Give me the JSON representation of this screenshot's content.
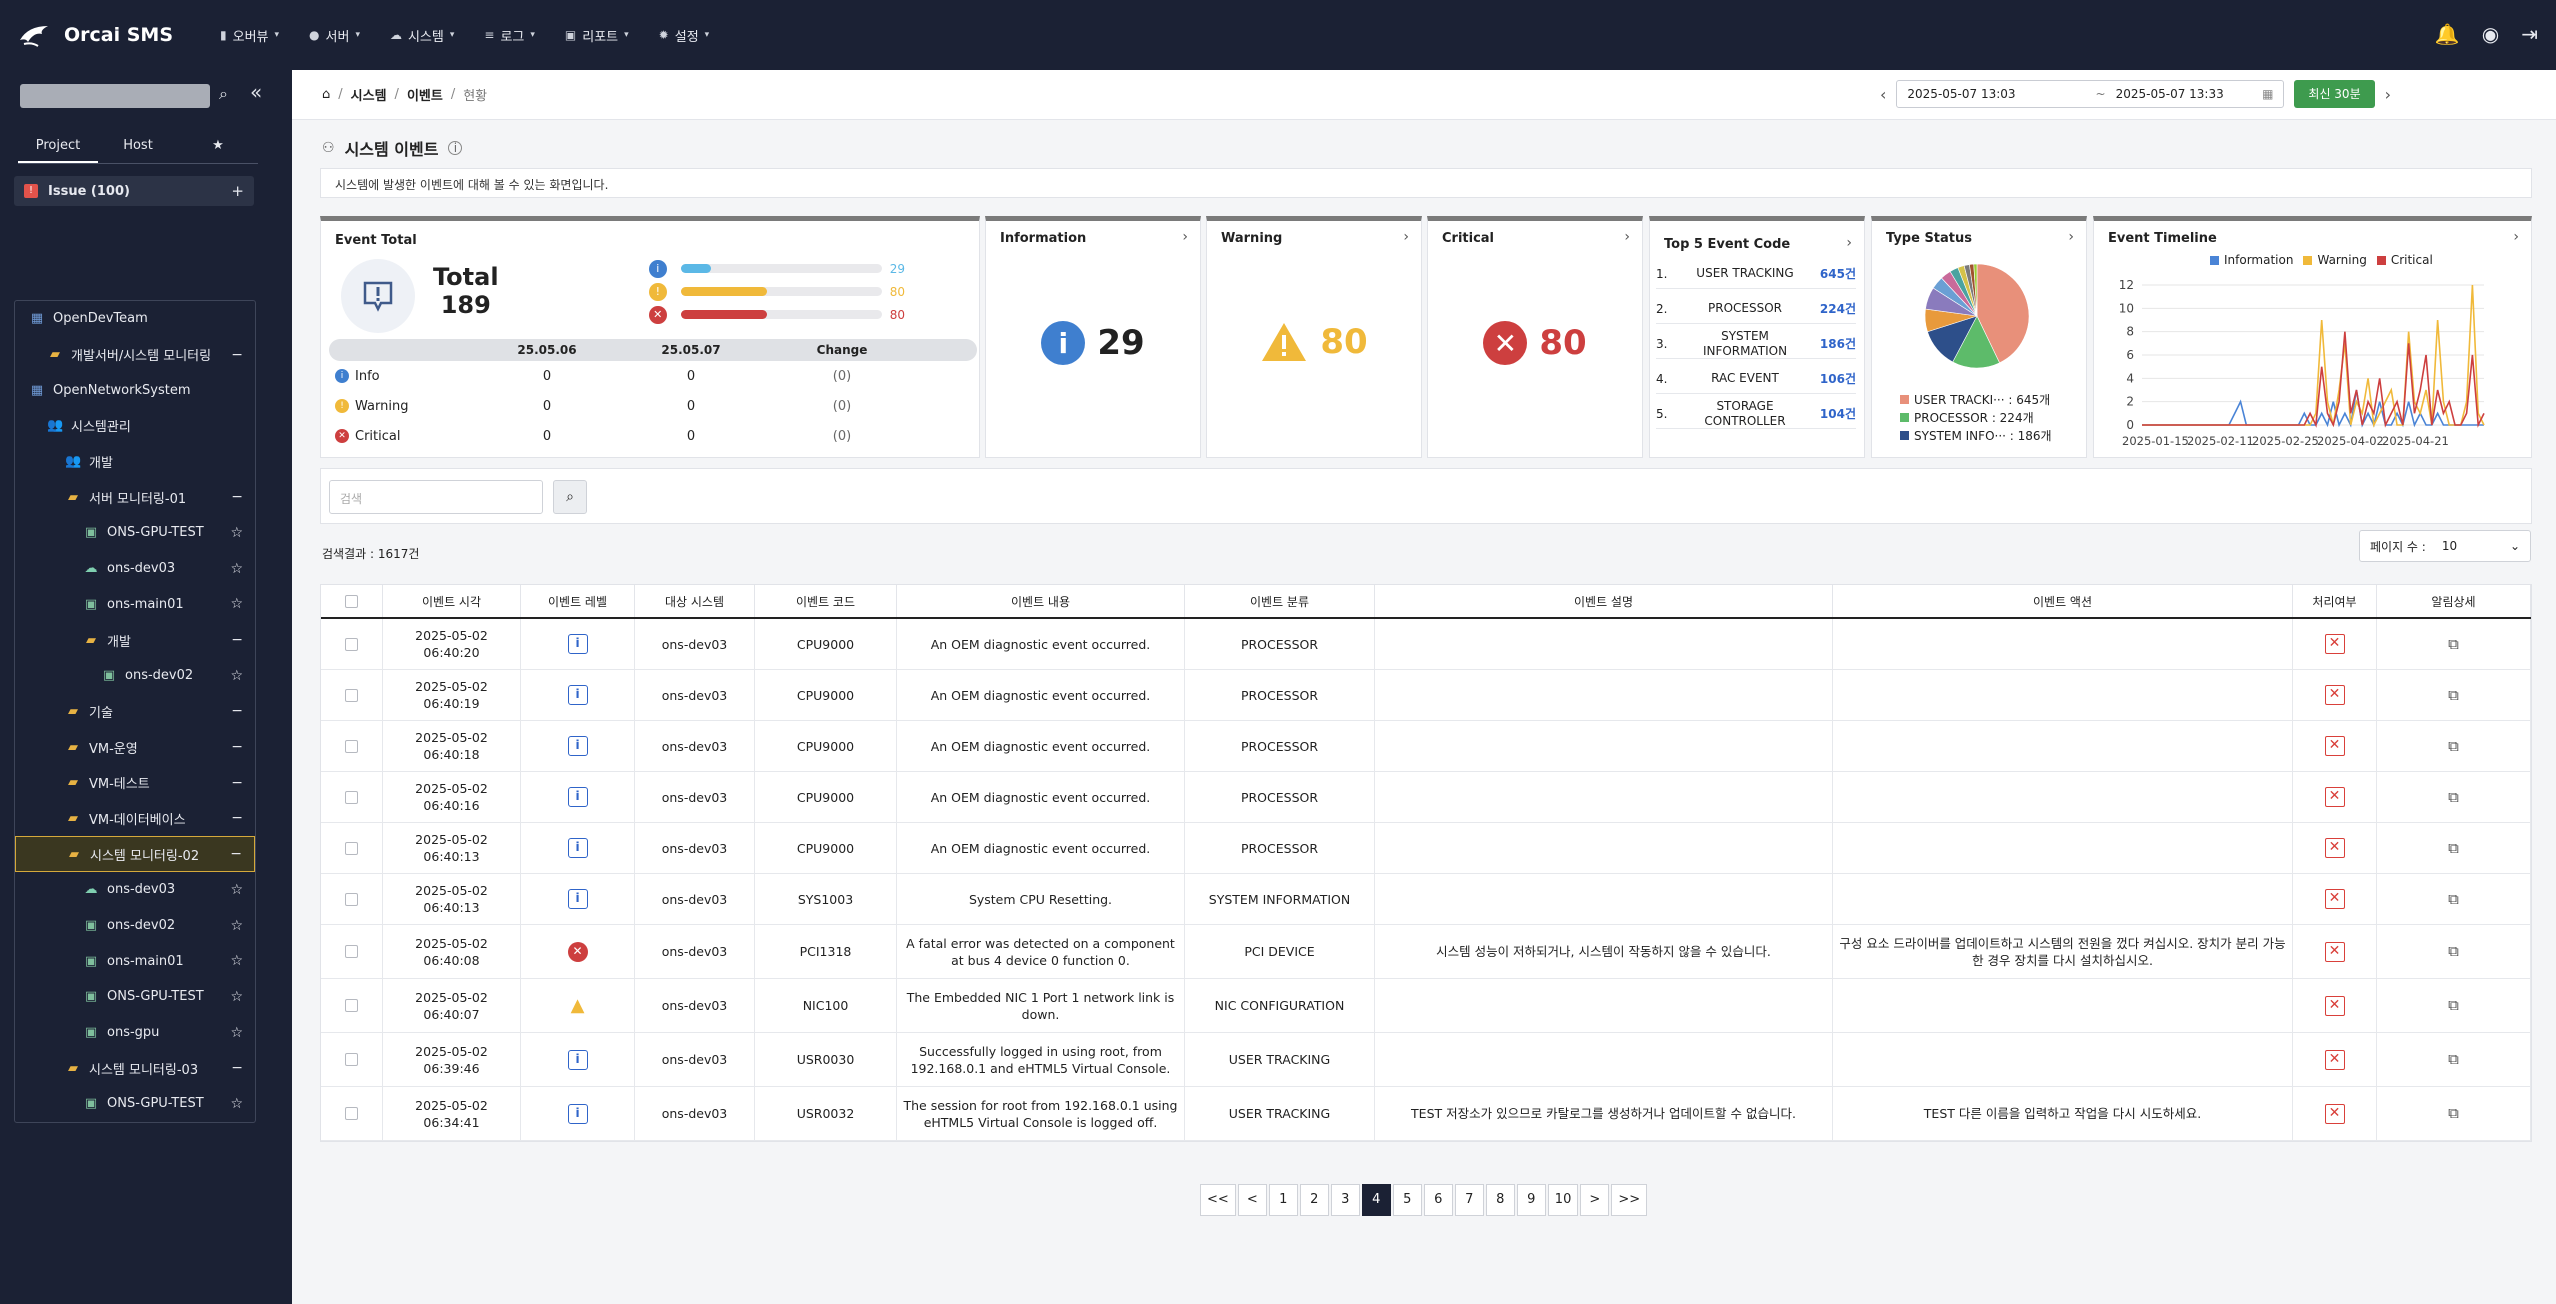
{
  "app": {
    "name": "Orcai SMS"
  },
  "menu": [
    {
      "icon": "chart-icon",
      "label": "오버뷰"
    },
    {
      "icon": "server-icon",
      "label": "서버"
    },
    {
      "icon": "cloud-icon",
      "label": "시스템"
    },
    {
      "icon": "list-icon",
      "label": "로그"
    },
    {
      "icon": "report-icon",
      "label": "리포트"
    },
    {
      "icon": "gear-icon",
      "label": "설정"
    }
  ],
  "sidebar": {
    "tabs": [
      "Project",
      "Host"
    ],
    "issue_label": "Issue (100)",
    "tree": [
      {
        "label": "OpenDevTeam",
        "type": "team",
        "indent": 0,
        "action": ""
      },
      {
        "label": "개발서버/시스템 모니터링",
        "type": "folder",
        "indent": 1,
        "action": "−"
      },
      {
        "label": "OpenNetworkSystem",
        "type": "team",
        "indent": 0,
        "action": ""
      },
      {
        "label": "시스템관리",
        "type": "group",
        "indent": 1,
        "action": ""
      },
      {
        "label": "개발",
        "type": "group",
        "indent": 2,
        "action": ""
      },
      {
        "label": "서버 모니터링-01",
        "type": "folder",
        "indent": 2,
        "action": "−"
      },
      {
        "label": "ONS-GPU-TEST",
        "type": "host",
        "indent": 3,
        "action": "☆"
      },
      {
        "label": "ons-dev03",
        "type": "cloud",
        "indent": 3,
        "action": "☆"
      },
      {
        "label": "ons-main01",
        "type": "host",
        "indent": 3,
        "action": "☆"
      },
      {
        "label": "개발",
        "type": "folder",
        "indent": 3,
        "action": "−"
      },
      {
        "label": "ons-dev02",
        "type": "host",
        "indent": 4,
        "action": "☆"
      },
      {
        "label": "기술",
        "type": "folder",
        "indent": 2,
        "action": "−"
      },
      {
        "label": "VM-운영",
        "type": "folder",
        "indent": 2,
        "action": "−"
      },
      {
        "label": "VM-테스트",
        "type": "folder",
        "indent": 2,
        "action": "−"
      },
      {
        "label": "VM-데이터베이스",
        "type": "folder",
        "indent": 2,
        "action": "−"
      },
      {
        "label": "시스템 모니터링-02",
        "type": "folder",
        "indent": 2,
        "action": "−",
        "selected": true
      },
      {
        "label": "ons-dev03",
        "type": "cloud",
        "indent": 3,
        "action": "☆"
      },
      {
        "label": "ons-dev02",
        "type": "host",
        "indent": 3,
        "action": "☆"
      },
      {
        "label": "ons-main01",
        "type": "host",
        "indent": 3,
        "action": "☆"
      },
      {
        "label": "ONS-GPU-TEST",
        "type": "host",
        "indent": 3,
        "action": "☆"
      },
      {
        "label": "ons-gpu",
        "type": "host",
        "indent": 3,
        "action": "☆"
      },
      {
        "label": "시스템 모니터링-03",
        "type": "folder",
        "indent": 2,
        "action": "−"
      },
      {
        "label": "ONS-GPU-TEST",
        "type": "host",
        "indent": 3,
        "action": "☆"
      }
    ]
  },
  "breadcrumb": {
    "a": "시스템",
    "b": "이벤트",
    "c": "현황"
  },
  "daterange": {
    "start": "2025-05-07 13:03",
    "sep": "~",
    "end": "2025-05-07 13:33",
    "recent": "최신 30분"
  },
  "page": {
    "title": "시스템 이벤트",
    "desc": "시스템에 발생한 이벤트에 대해 볼 수 있는 화면입니다."
  },
  "event_total": {
    "title": "Event Total",
    "total_label": "Total",
    "total": "189",
    "bars": [
      {
        "count": "29",
        "ratio": 0.15,
        "color": "#5bb8e6"
      },
      {
        "count": "80",
        "ratio": 0.43,
        "color": "#f0b93a"
      },
      {
        "count": "80",
        "ratio": 0.43,
        "color": "#cd3f3f"
      }
    ],
    "col1": "25.05.06",
    "col2": "25.05.07",
    "col3": "Change",
    "rows": [
      {
        "label": "Info",
        "a": "0",
        "b": "0",
        "c": "(0)"
      },
      {
        "label": "Warning",
        "a": "0",
        "b": "0",
        "c": "(0)"
      },
      {
        "label": "Critical",
        "a": "0",
        "b": "0",
        "c": "(0)"
      }
    ]
  },
  "information": {
    "title": "Information",
    "value": "29"
  },
  "warning": {
    "title": "Warning",
    "value": "80"
  },
  "critical": {
    "title": "Critical",
    "value": "80"
  },
  "top5": {
    "title": "Top 5 Event Code",
    "items": [
      {
        "rank": "1.",
        "name": "USER TRACKING",
        "count": "645건"
      },
      {
        "rank": "2.",
        "name": "PROCESSOR",
        "count": "224건"
      },
      {
        "rank": "3.",
        "name": "SYSTEM INFORMATION",
        "count": "186건"
      },
      {
        "rank": "4.",
        "name": "RAC EVENT",
        "count": "106건"
      },
      {
        "rank": "5.",
        "name": "STORAGE CONTROLLER",
        "count": "104건"
      }
    ]
  },
  "type_status": {
    "title": "Type Status",
    "legend": [
      {
        "label": "USER TRACKI··· : 645개",
        "color": "#e8907a"
      },
      {
        "label": "PROCESSOR : 224개",
        "color": "#5dbb6a"
      },
      {
        "label": "SYSTEM INFO··· : 186개",
        "color": "#2d4f8a"
      }
    ],
    "slices": [
      645,
      224,
      186,
      106,
      104,
      60,
      50,
      40,
      30,
      25,
      20,
      15
    ],
    "slice_colors": [
      "#e8907a",
      "#5dbb6a",
      "#2d4f8a",
      "#e89a3c",
      "#8a7bbd",
      "#6a9fd4",
      "#c96a9a",
      "#4aa3a0",
      "#d4c24a",
      "#7a7a7a",
      "#a0522d",
      "#9acd32"
    ]
  },
  "timeline": {
    "title": "Event Timeline",
    "legend": [
      "Information",
      "Warning",
      "Critical"
    ],
    "colors": [
      "#4a84d6",
      "#f0b93a",
      "#cd3f3f"
    ],
    "yticks": [
      "12",
      "10",
      "8",
      "6",
      "4",
      "2",
      "0"
    ],
    "xticks": [
      "2025-01-15",
      "2025-02-11",
      "2025-02-25",
      "2025-04-02",
      "2025-04-21"
    ],
    "series": [
      [
        0,
        0,
        0,
        0,
        0,
        0,
        0,
        0,
        0,
        0,
        0,
        0,
        0,
        0,
        0,
        0,
        1,
        2,
        0,
        0,
        0,
        0,
        0,
        0,
        0,
        0,
        0,
        0,
        1,
        0,
        0,
        1,
        0,
        2,
        0,
        1,
        0,
        3,
        0,
        1,
        0,
        2,
        0,
        0,
        1,
        0,
        2,
        0,
        1,
        0,
        0,
        1,
        0,
        0,
        0,
        0,
        0,
        0,
        0,
        0
      ],
      [
        0,
        0,
        0,
        0,
        0,
        0,
        0,
        0,
        0,
        0,
        0,
        0,
        0,
        0,
        0,
        0,
        0,
        0,
        0,
        0,
        0,
        0,
        0,
        0,
        0,
        0,
        0,
        0,
        0,
        0,
        1,
        9,
        2,
        0,
        3,
        7,
        0,
        2,
        1,
        4,
        0,
        1,
        2,
        3,
        0,
        0,
        8,
        2,
        1,
        3,
        0,
        9,
        2,
        0,
        0,
        0,
        2,
        12,
        1,
        0
      ],
      [
        0,
        0,
        0,
        0,
        0,
        0,
        0,
        0,
        0,
        0,
        0,
        0,
        0,
        0,
        0,
        0,
        0,
        0,
        0,
        0,
        0,
        0,
        0,
        0,
        0,
        0,
        0,
        0,
        0,
        1,
        0,
        5,
        1,
        0,
        2,
        8,
        1,
        3,
        0,
        2,
        1,
        4,
        0,
        1,
        2,
        0,
        7,
        1,
        3,
        6,
        0,
        3,
        1,
        2,
        0,
        0,
        1,
        6,
        0,
        1
      ]
    ]
  },
  "search": {
    "placeholder": "검색"
  },
  "result": "검색결과 : 1617건",
  "pagesize": {
    "label": "페이지 수 :",
    "value": "10"
  },
  "table": {
    "headers": [
      "이벤트 시각",
      "이벤트 레벨",
      "대상 시스템",
      "이벤트 코드",
      "이벤트 내용",
      "이벤트 분류",
      "이벤트 설명",
      "이벤트 액션",
      "처리여부",
      "알림상세"
    ],
    "rows": [
      {
        "time": "2025-05-02 06:40:20",
        "level": "info",
        "sys": "ons-dev03",
        "code": "CPU9000",
        "content": "An OEM diagnostic event occurred.",
        "cat": "PROCESSOR",
        "desc": "",
        "action": ""
      },
      {
        "time": "2025-05-02 06:40:19",
        "level": "info",
        "sys": "ons-dev03",
        "code": "CPU9000",
        "content": "An OEM diagnostic event occurred.",
        "cat": "PROCESSOR",
        "desc": "",
        "action": ""
      },
      {
        "time": "2025-05-02 06:40:18",
        "level": "info",
        "sys": "ons-dev03",
        "code": "CPU9000",
        "content": "An OEM diagnostic event occurred.",
        "cat": "PROCESSOR",
        "desc": "",
        "action": ""
      },
      {
        "time": "2025-05-02 06:40:16",
        "level": "info",
        "sys": "ons-dev03",
        "code": "CPU9000",
        "content": "An OEM diagnostic event occurred.",
        "cat": "PROCESSOR",
        "desc": "",
        "action": ""
      },
      {
        "time": "2025-05-02 06:40:13",
        "level": "info",
        "sys": "ons-dev03",
        "code": "CPU9000",
        "content": "An OEM diagnostic event occurred.",
        "cat": "PROCESSOR",
        "desc": "",
        "action": ""
      },
      {
        "time": "2025-05-02 06:40:13",
        "level": "info",
        "sys": "ons-dev03",
        "code": "SYS1003",
        "content": "System CPU Resetting.",
        "cat": "SYSTEM INFORMATION",
        "desc": "",
        "action": ""
      },
      {
        "time": "2025-05-02 06:40:08",
        "level": "critical",
        "sys": "ons-dev03",
        "code": "PCI1318",
        "content": "A fatal error was detected on a component at bus 4 device 0 function 0.",
        "cat": "PCI DEVICE",
        "desc": "시스템 성능이 저하되거나, 시스템이 작동하지 않을 수 있습니다.",
        "action": "구성 요소 드라이버를 업데이트하고 시스템의 전원을 껐다 켜십시오. 장치가 분리 가능한 경우 장치를 다시 설치하십시오."
      },
      {
        "time": "2025-05-02 06:40:07",
        "level": "warning",
        "sys": "ons-dev03",
        "code": "NIC100",
        "content": "The Embedded NIC 1 Port 1 network link is down.",
        "cat": "NIC CONFIGURATION",
        "desc": "",
        "action": ""
      },
      {
        "time": "2025-05-02 06:39:46",
        "level": "info",
        "sys": "ons-dev03",
        "code": "USR0030",
        "content": "Successfully logged in using root, from 192.168.0.1 and eHTML5 Virtual Console.",
        "cat": "USER TRACKING",
        "desc": "",
        "action": ""
      },
      {
        "time": "2025-05-02 06:34:41",
        "level": "info",
        "sys": "ons-dev03",
        "code": "USR0032",
        "content": "The session for root from 192.168.0.1 using eHTML5 Virtual Console is logged off.",
        "cat": "USER TRACKING",
        "desc": "TEST 저장소가 있으므로 카탈로그를 생성하거나 업데이트할 수 없습니다.",
        "action": "TEST 다른 이름을 입력하고 작업을 다시 시도하세요."
      }
    ]
  },
  "pager": {
    "items": [
      "<<",
      "<",
      "1",
      "2",
      "3",
      "4",
      "5",
      "6",
      "7",
      "8",
      "9",
      "10",
      ">",
      ">>"
    ],
    "active": "4"
  }
}
